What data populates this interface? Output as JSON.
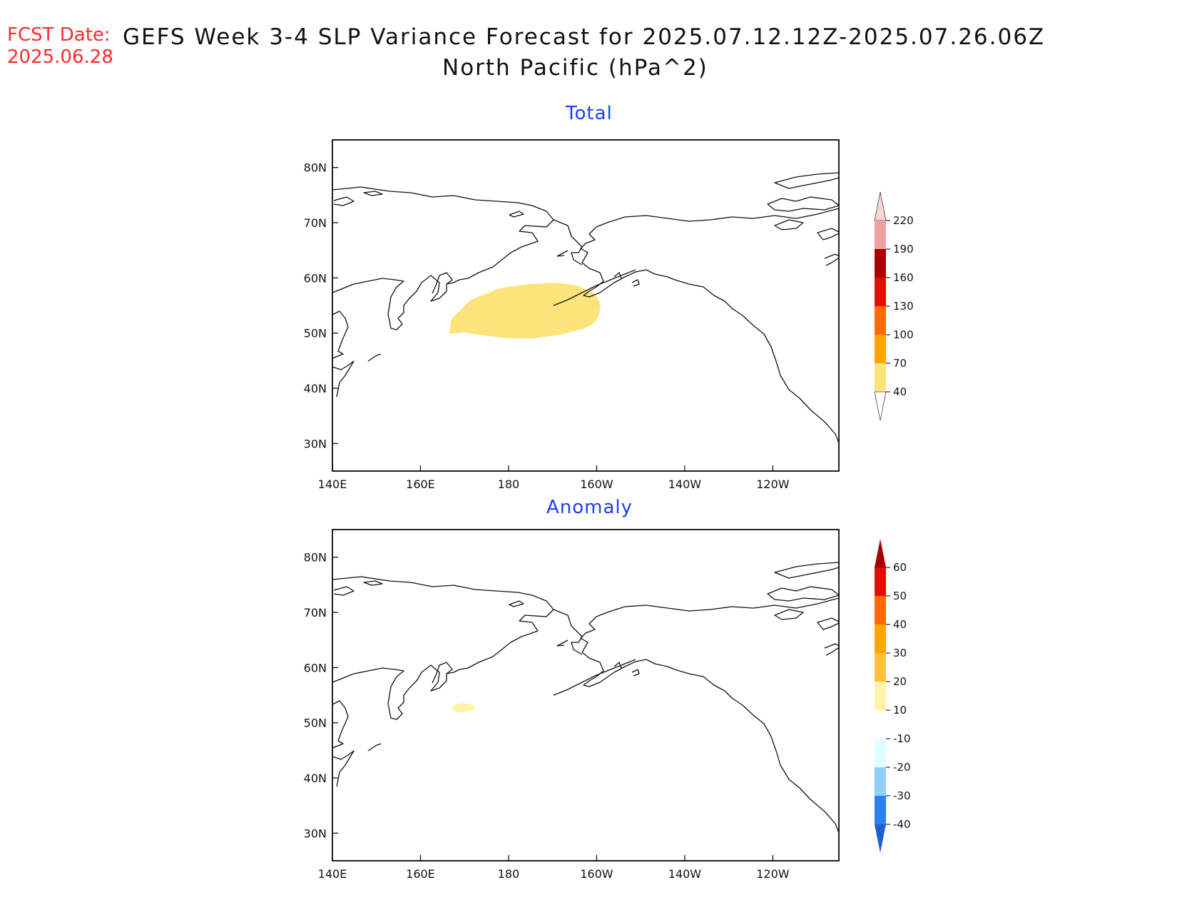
{
  "header": {
    "fcst_label": "FCST Date:",
    "fcst_date": "2025.06.28",
    "title_line1": "GEFS Week 3-4 SLP Variance Forecast for 2025.07.12.12Z-2025.07.26.06Z",
    "title_line2": "North Pacific (hPa^2)"
  },
  "axes": {
    "lat_ticks": [
      "80N",
      "70N",
      "60N",
      "50N",
      "40N",
      "30N"
    ],
    "lon_ticks": [
      "140E",
      "160E",
      "180",
      "160W",
      "140W",
      "120W"
    ]
  },
  "panels": [
    {
      "title": "Total",
      "colorbar": {
        "levels": [
          "220",
          "190",
          "160",
          "130",
          "100",
          "70",
          "40"
        ],
        "colors": [
          "#f9d6d4",
          "#f0a0a0",
          "#a80000",
          "#e01000",
          "#ff6a00",
          "#ffa500",
          "#fde47a"
        ],
        "bottom_extend_color": "#ffffff"
      },
      "shaded_regions": [
        {
          "value_range": "40-70",
          "color": "#fde47a",
          "approx_extent": "155E-162W, 50N-60N"
        }
      ]
    },
    {
      "title": "Anomaly",
      "colorbar": {
        "levels": [
          "60",
          "50",
          "40",
          "30",
          "20",
          "10",
          "-10",
          "-20",
          "-30",
          "-40"
        ],
        "colors": [
          "#a80000",
          "#e01000",
          "#ff6a00",
          "#ffa500",
          "#ffc040",
          "#fff3a8",
          "#ffffff",
          "#e0ffff",
          "#90d0f8",
          "#2a80f0",
          "#1e60d0"
        ]
      },
      "shaded_regions": [
        {
          "value_range": "10-20",
          "color": "#fff3a8",
          "approx_extent": "near 53N, 166E"
        }
      ]
    }
  ]
}
